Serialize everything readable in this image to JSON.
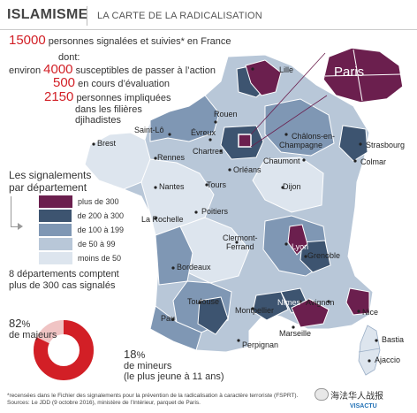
{
  "header": {
    "title": "ISLAMISME",
    "subtitle": "LA CARTE DE LA RADICALISATION"
  },
  "stats": {
    "main_value": "15000",
    "main_text": "personnes signalées et suivies* en France",
    "dont": "dont:",
    "l1_prefix": "environ",
    "l1_value": "4000",
    "l1_text": "susceptibles de passer à l’action",
    "l2_value": "500",
    "l2_text": "en cours d’évaluation",
    "l3_value": "2150",
    "l3_text_1": "personnes impliquées",
    "l3_text_2": "dans les filières",
    "l3_text_3": "djihadistes"
  },
  "legend": {
    "title_1": "Les signalements",
    "title_2": "par département",
    "items": [
      {
        "label": "plus de 300",
        "color": "#6b1f4e"
      },
      {
        "label": "de 200 à 300",
        "color": "#3d5470"
      },
      {
        "label": "de 100 à 199",
        "color": "#7f97b4"
      },
      {
        "label": "de 50 à 99",
        "color": "#b8c7d8"
      },
      {
        "label": "moins de 50",
        "color": "#dde5ee"
      }
    ]
  },
  "summary": {
    "line1": "8 départements comptent",
    "line2": "plus de 300 cas signalés"
  },
  "donut": {
    "majeurs_pct": 82,
    "majeurs_label": "82",
    "majeurs_unit": "%",
    "majeurs_text": "de majeurs",
    "mineurs_pct": 18,
    "mineurs_label": "18",
    "mineurs_unit": "%",
    "mineurs_text_1": "de mineurs",
    "mineurs_text_2": "(le plus jeune à 11 ans)",
    "color_major": "#d21f26",
    "color_minor": "#f0c4c4"
  },
  "cities": {
    "paris": "Paris",
    "lille": "Lille",
    "rouen": "Rouen",
    "saintlo": "Saint-Lô",
    "evreux": "Évreux",
    "chalons1": "Châlons-en-",
    "chalons2": "Champagne",
    "strasbourg": "Strasbourg",
    "colmar": "Colmar",
    "brest": "Brest",
    "rennes": "Rennes",
    "chartres": "Chartres",
    "orleans": "Orléans",
    "chaumont": "Chaumont",
    "nantes": "Nantes",
    "tours": "Tours",
    "dijon": "Dijon",
    "larochelle": "La Rochelle",
    "poitiers": "Poitiers",
    "clermont1": "Clermont-",
    "clermont2": "Ferrand",
    "lyon": "Lyon",
    "grenoble": "Grenoble",
    "bordeaux": "Bordeaux",
    "toulouse": "Toulouse",
    "montpellier": "Montpellier",
    "nimes": "Nîmes",
    "avignon": "Avignon",
    "nice": "Nice",
    "marseille": "Marseille",
    "pau": "Pau",
    "perpignan": "Perpignan",
    "bastia": "Bastia",
    "ajaccio": "Ajaccio"
  },
  "footnote": {
    "line1": "*recensées dans le Fichier des signalements pour la prévention de la radicalisation à caractère terroriste (FSPRT).",
    "line2": "Sources: Le JDD (9 octobre 2016), ministère de l’Intérieur, parquet de Paris."
  },
  "brand": "VISACTU",
  "watermark": "海法华人战报"
}
